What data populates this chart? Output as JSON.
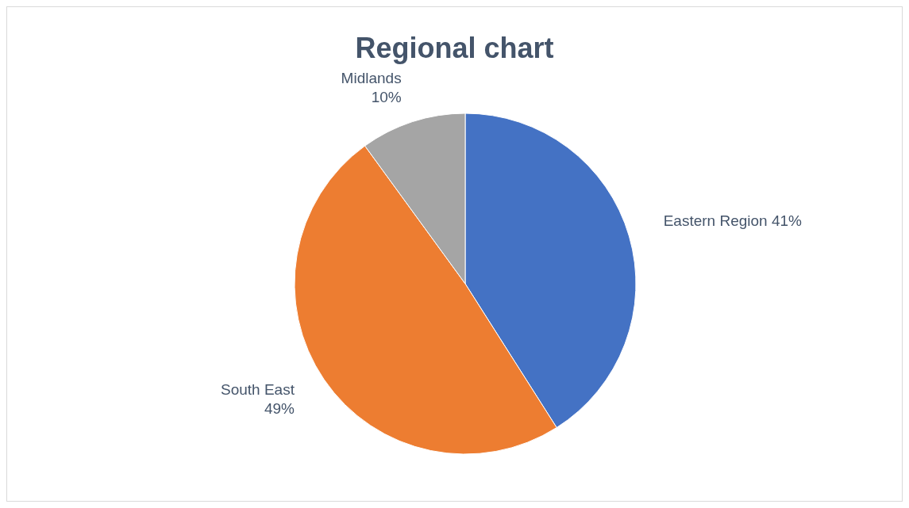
{
  "chart_data": {
    "type": "pie",
    "title": "Regional chart",
    "categories": [
      "Eastern Region",
      "South East",
      "Midlands"
    ],
    "values": [
      41,
      49,
      10
    ],
    "colors": [
      "#4472c4",
      "#ed7d31",
      "#a5a5a5"
    ],
    "value_labels": [
      "41%",
      "49%",
      "10%"
    ]
  }
}
